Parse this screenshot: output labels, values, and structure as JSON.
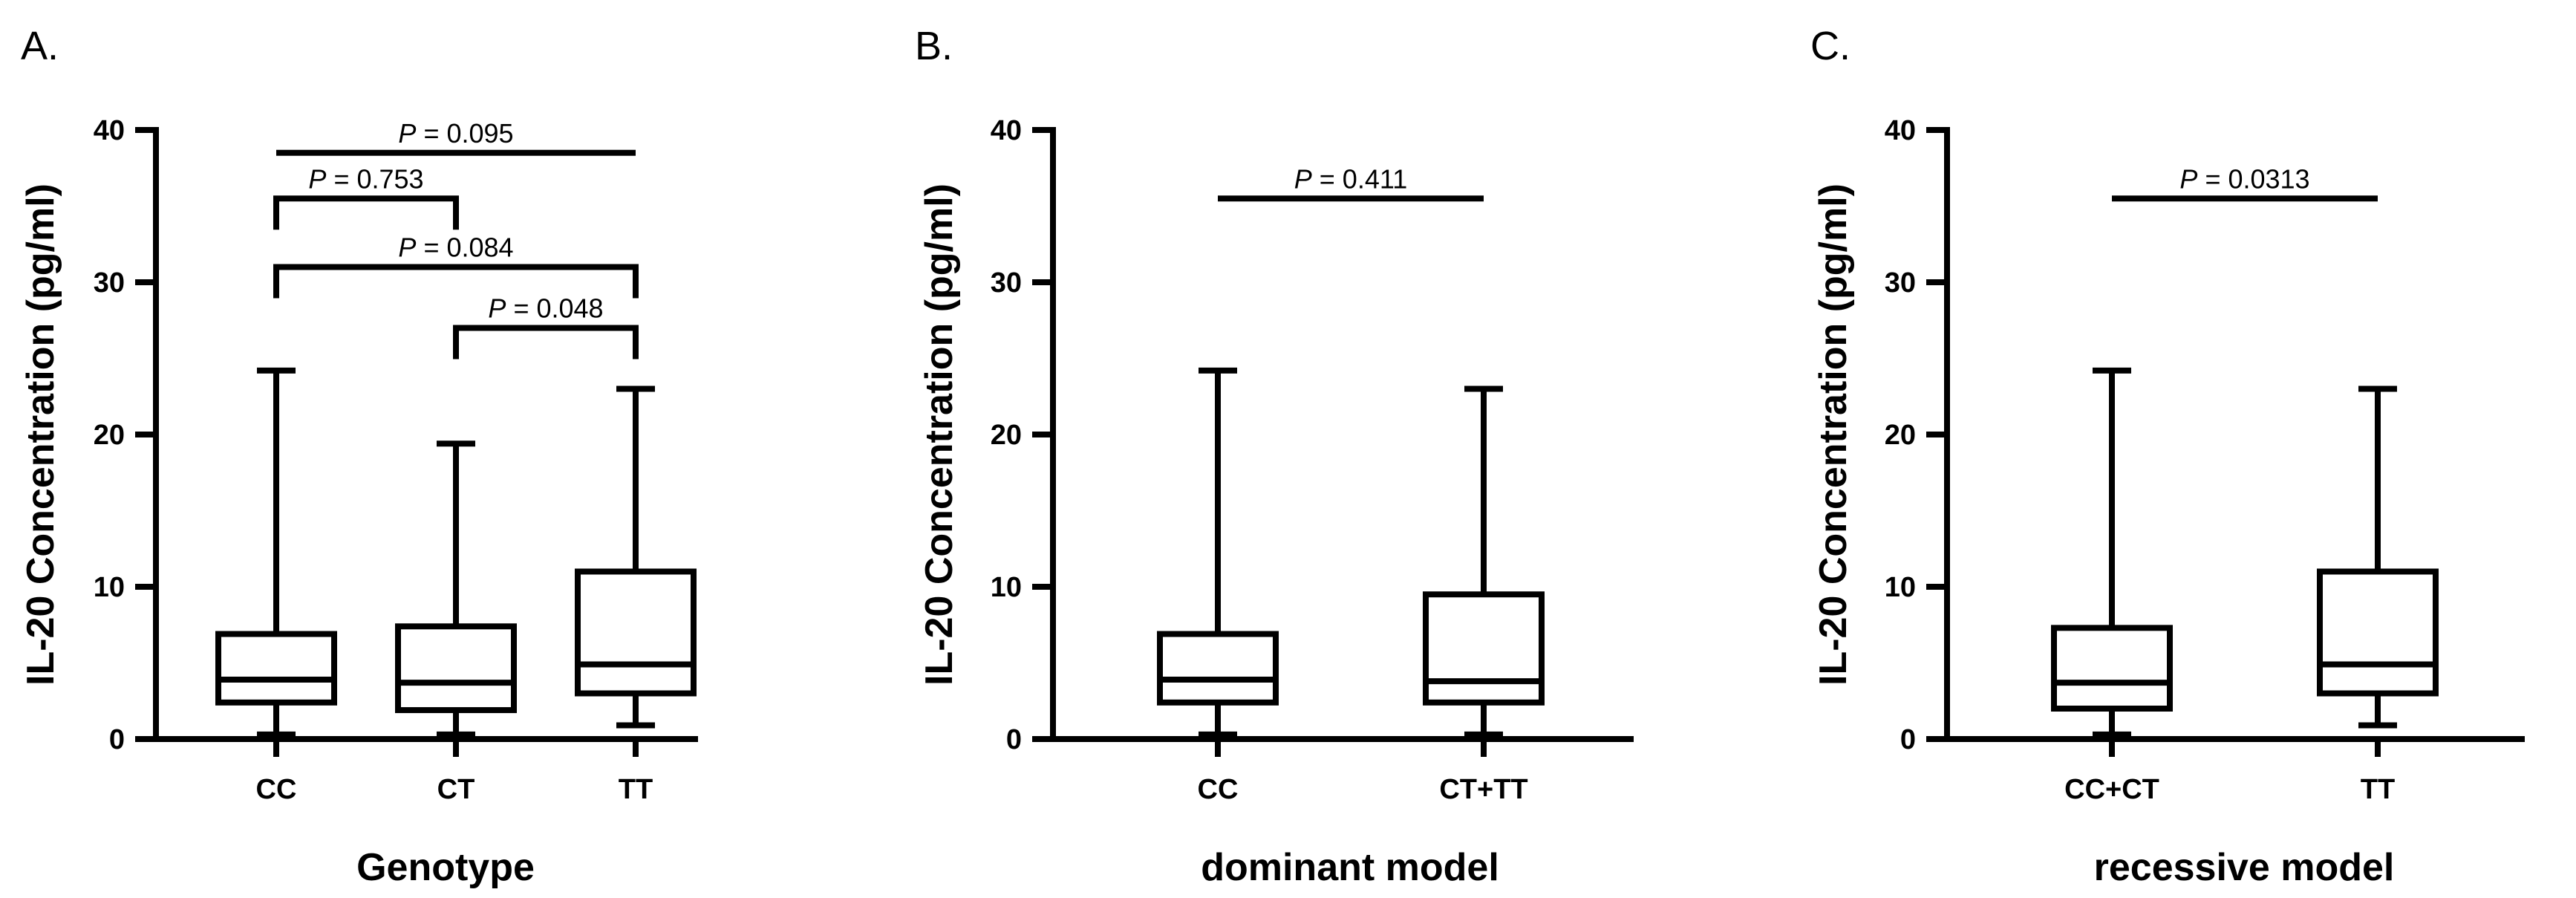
{
  "chart_data": [
    {
      "type": "box",
      "panel_label": "A.",
      "xlabel": "Genotype",
      "ylabel": "IL-20 Concentration (pg/ml)",
      "ylim": [
        0,
        40
      ],
      "yticks": [
        0,
        10,
        20,
        30,
        40
      ],
      "categories": [
        "CC",
        "CT",
        "TT"
      ],
      "boxes": [
        {
          "min": 0.3,
          "q1": 2.4,
          "median": 3.9,
          "q3": 6.9,
          "max": 24.2
        },
        {
          "min": 0.3,
          "q1": 1.9,
          "median": 3.7,
          "q3": 7.4,
          "max": 19.4
        },
        {
          "min": 0.9,
          "q1": 3.0,
          "median": 4.9,
          "q3": 11.0,
          "max": 23.0
        }
      ],
      "comparisons": [
        {
          "from": 0,
          "to": 2,
          "p_value": "0.095",
          "height": 38.5,
          "bracket": false
        },
        {
          "from": 0,
          "to": 1,
          "p_value": "0.753",
          "height": 35.5,
          "bracket": true
        },
        {
          "from": 0,
          "to": 2,
          "p_value": "0.084",
          "height": 31.0,
          "bracket": true
        },
        {
          "from": 1,
          "to": 2,
          "p_value": "0.048",
          "height": 27.0,
          "bracket": true
        }
      ]
    },
    {
      "type": "box",
      "panel_label": "B.",
      "xlabel": "dominant model",
      "ylabel": "IL-20 Concentration (pg/ml)",
      "ylim": [
        0,
        40
      ],
      "yticks": [
        0,
        10,
        20,
        30,
        40
      ],
      "categories": [
        "CC",
        "CT+TT"
      ],
      "boxes": [
        {
          "min": 0.3,
          "q1": 2.4,
          "median": 3.9,
          "q3": 6.9,
          "max": 24.2
        },
        {
          "min": 0.3,
          "q1": 2.4,
          "median": 3.8,
          "q3": 9.5,
          "max": 23.0
        }
      ],
      "comparisons": [
        {
          "from": 0,
          "to": 1,
          "p_value": "0.411",
          "height": 35.5,
          "bracket": false
        }
      ]
    },
    {
      "type": "box",
      "panel_label": "C.",
      "xlabel": "recessive model",
      "ylabel": "IL-20 Concentration (pg/ml)",
      "ylim": [
        0,
        40
      ],
      "yticks": [
        0,
        10,
        20,
        30,
        40
      ],
      "categories": [
        "CC+CT",
        "TT"
      ],
      "boxes": [
        {
          "min": 0.3,
          "q1": 2.0,
          "median": 3.7,
          "q3": 7.3,
          "max": 24.2
        },
        {
          "min": 0.9,
          "q1": 3.0,
          "median": 4.9,
          "q3": 11.0,
          "max": 23.0
        }
      ],
      "comparisons": [
        {
          "from": 0,
          "to": 1,
          "p_value": "0.0313",
          "height": 35.5,
          "bracket": false
        }
      ]
    }
  ],
  "p_prefix": "P",
  "p_equals": " = "
}
